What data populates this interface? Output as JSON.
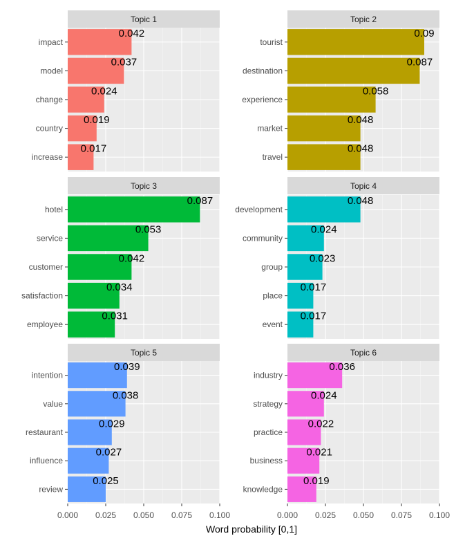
{
  "chart_data": {
    "type": "bar",
    "orientation": "horizontal",
    "xlabel": "Word probability [0,1]",
    "xlim": [
      0,
      0.1
    ],
    "x_ticks": [
      "0.000",
      "0.025",
      "0.050",
      "0.075",
      "0.100"
    ],
    "grid": true,
    "legend": "none",
    "facets": [
      {
        "title": "Topic 1",
        "color": "#F8766D",
        "categories": [
          "impact",
          "model",
          "change",
          "country",
          "increase"
        ],
        "values": [
          0.042,
          0.037,
          0.024,
          0.019,
          0.017
        ],
        "labels": [
          "0.042",
          "0.037",
          "0.024",
          "0.019",
          "0.017"
        ]
      },
      {
        "title": "Topic 2",
        "color": "#B79F00",
        "categories": [
          "tourist",
          "destination",
          "experience",
          "market",
          "travel"
        ],
        "values": [
          0.09,
          0.087,
          0.058,
          0.048,
          0.048
        ],
        "labels": [
          "0.09",
          "0.087",
          "0.058",
          "0.048",
          "0.048"
        ]
      },
      {
        "title": "Topic 3",
        "color": "#00BA38",
        "categories": [
          "hotel",
          "service",
          "customer",
          "satisfaction",
          "employee"
        ],
        "values": [
          0.087,
          0.053,
          0.042,
          0.034,
          0.031
        ],
        "labels": [
          "0.087",
          "0.053",
          "0.042",
          "0.034",
          "0.031"
        ]
      },
      {
        "title": "Topic 4",
        "color": "#00BFC4",
        "categories": [
          "development",
          "community",
          "group",
          "place",
          "event"
        ],
        "values": [
          0.048,
          0.024,
          0.023,
          0.017,
          0.017
        ],
        "labels": [
          "0.048",
          "0.024",
          "0.023",
          "0.017",
          "0.017"
        ]
      },
      {
        "title": "Topic 5",
        "color": "#619CFF",
        "categories": [
          "intention",
          "value",
          "restaurant",
          "influence",
          "review"
        ],
        "values": [
          0.039,
          0.038,
          0.029,
          0.027,
          0.025
        ],
        "labels": [
          "0.039",
          "0.038",
          "0.029",
          "0.027",
          "0.025"
        ]
      },
      {
        "title": "Topic 6",
        "color": "#F564E3",
        "categories": [
          "industry",
          "strategy",
          "practice",
          "business",
          "knowledge"
        ],
        "values": [
          0.036,
          0.024,
          0.022,
          0.021,
          0.019
        ],
        "labels": [
          "0.036",
          "0.024",
          "0.022",
          "0.021",
          "0.019"
        ]
      }
    ]
  }
}
